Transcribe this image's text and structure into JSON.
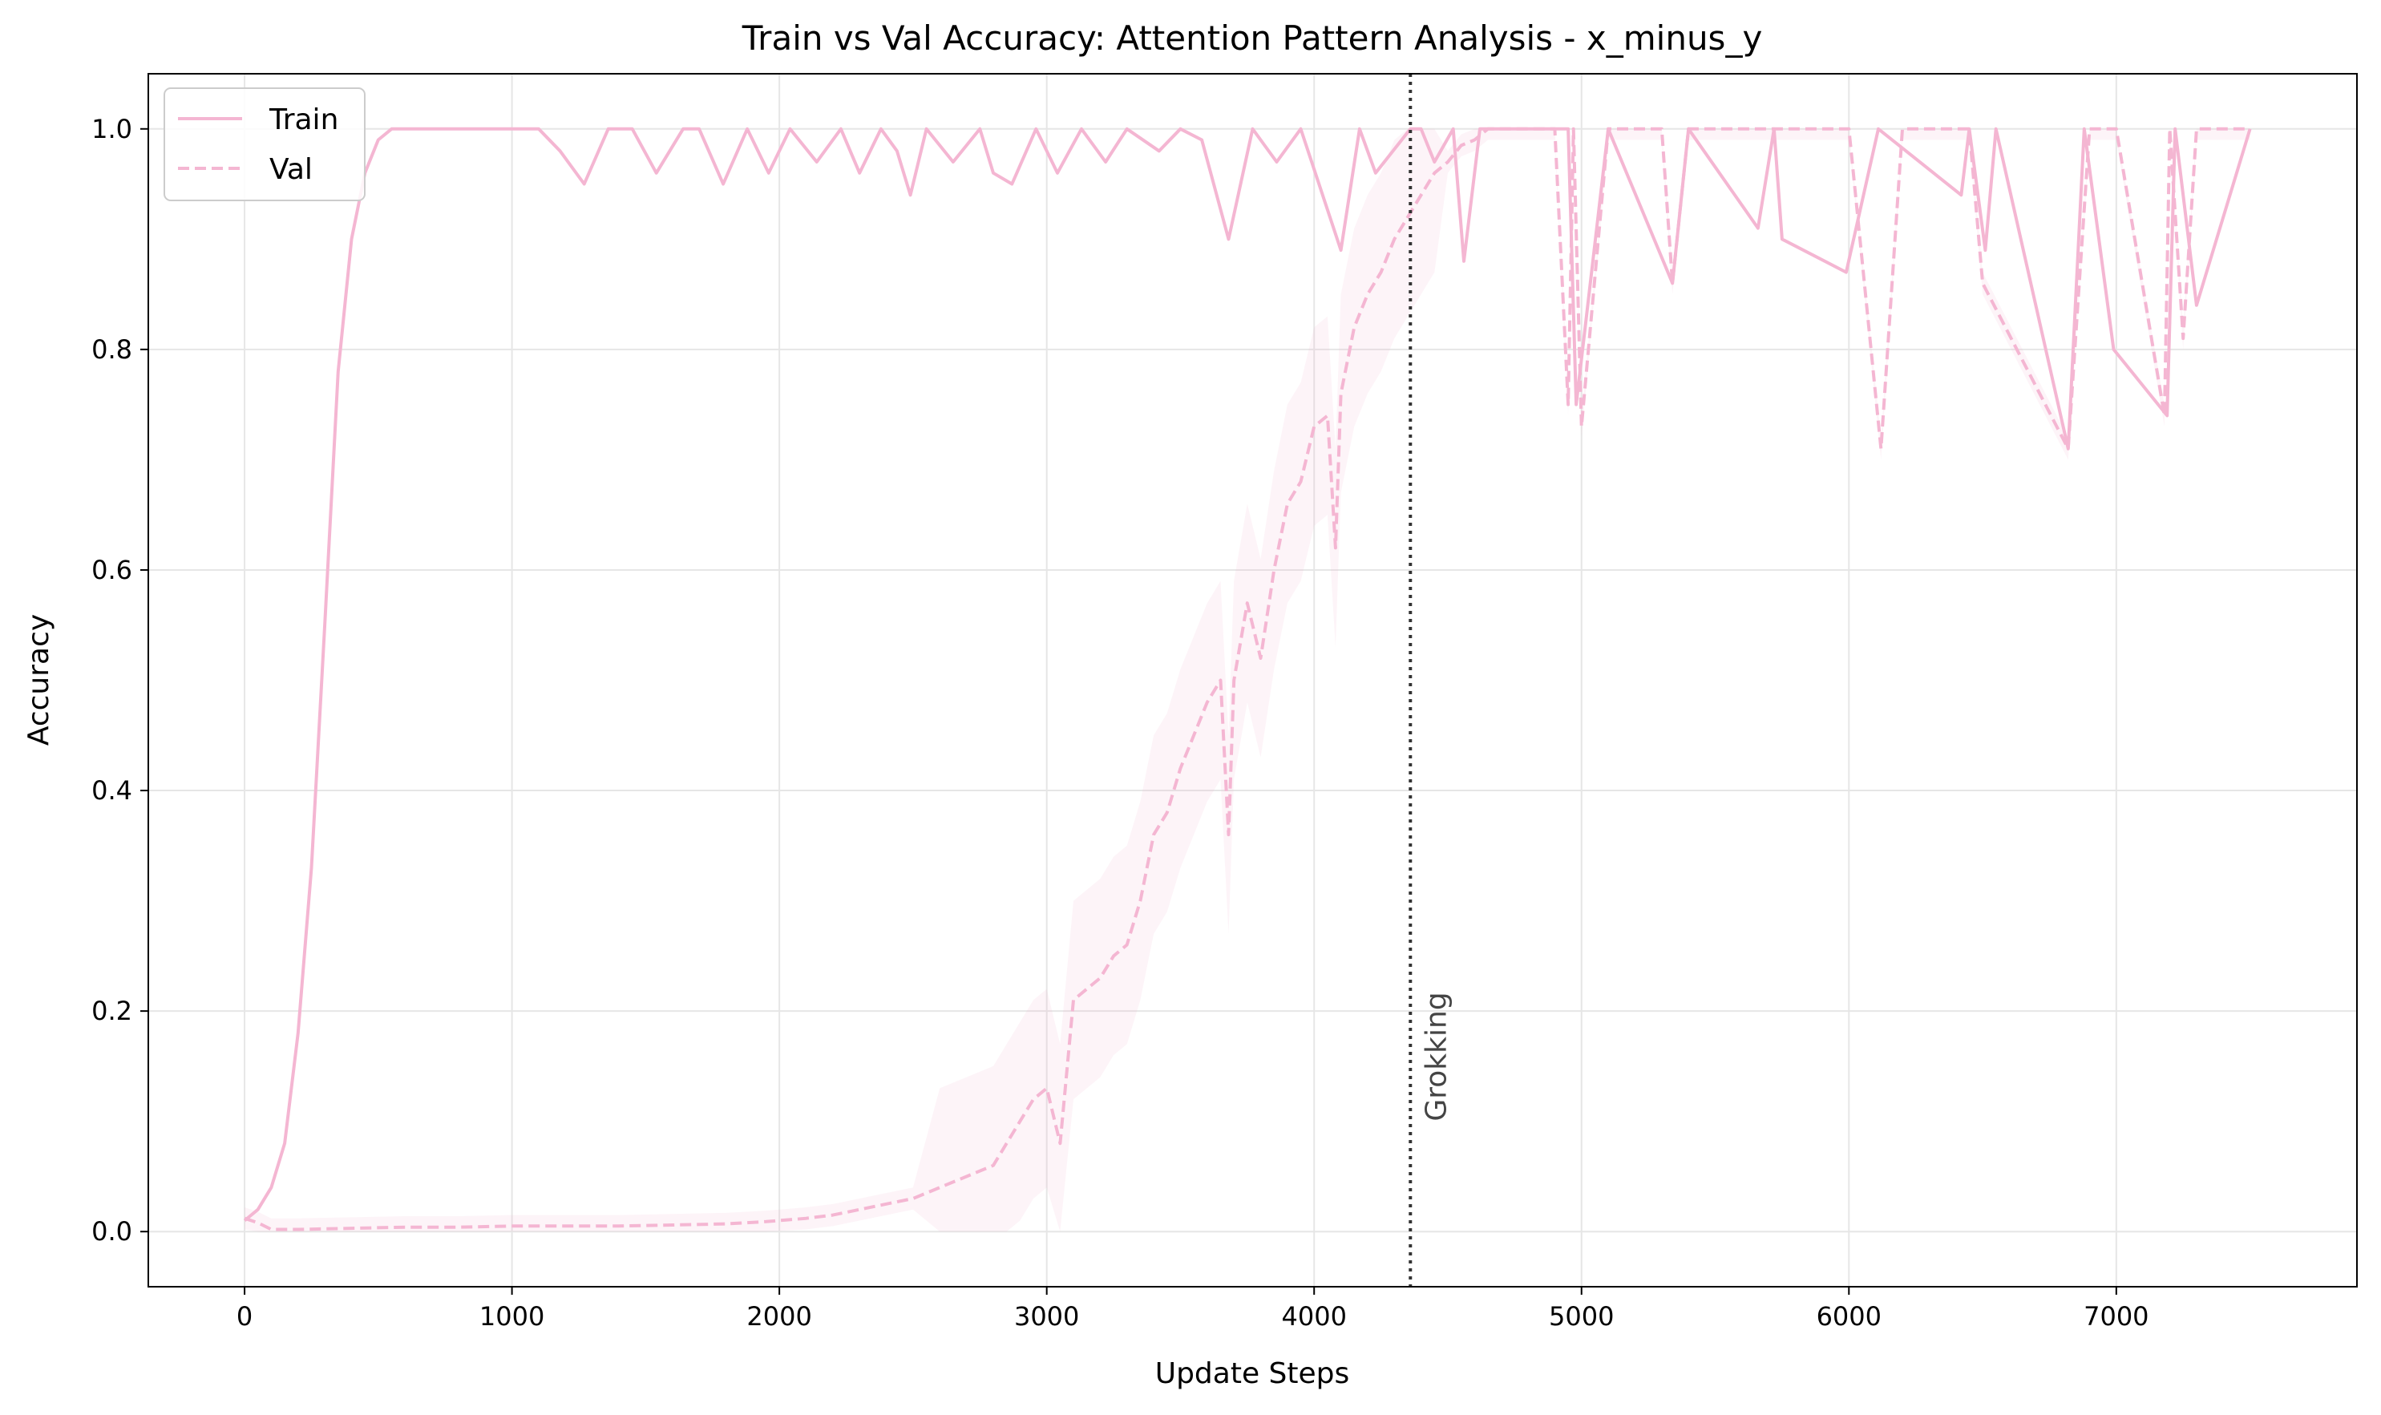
{
  "chart_data": {
    "type": "line",
    "title": "Train vs Val Accuracy: Attention Pattern Analysis - x_minus_y",
    "xlabel": "Update Steps",
    "ylabel": "Accuracy",
    "xlim": [
      -360,
      7900
    ],
    "ylim": [
      -0.05,
      1.05
    ],
    "xticks": [
      0,
      1000,
      2000,
      3000,
      4000,
      5000,
      6000,
      7000
    ],
    "yticks": [
      0.0,
      0.2,
      0.4,
      0.6,
      0.8,
      1.0
    ],
    "xtick_labels": [
      "0",
      "1000",
      "2000",
      "3000",
      "4000",
      "5000",
      "6000",
      "7000"
    ],
    "ytick_labels": [
      "0.0",
      "0.2",
      "0.4",
      "0.6",
      "0.8",
      "1.0"
    ],
    "grid": true,
    "legend_location": "top-left",
    "color": "#f4b6d2",
    "series": [
      {
        "name": "Train",
        "style": "solid",
        "x": [
          0,
          50,
          100,
          150,
          200,
          250,
          300,
          350,
          400,
          450,
          500,
          550,
          600,
          700,
          800,
          900,
          1000,
          1100,
          1180,
          1270,
          1360,
          1450,
          1540,
          1640,
          1700,
          1790,
          1880,
          1960,
          2040,
          2140,
          2230,
          2300,
          2380,
          2440,
          2490,
          2550,
          2650,
          2750,
          2800,
          2870,
          2960,
          3040,
          3130,
          3220,
          3300,
          3420,
          3500,
          3580,
          3680,
          3770,
          3860,
          3950,
          4100,
          4170,
          4230,
          4360,
          4400,
          4450,
          4520,
          4560,
          4620,
          4700,
          4800,
          4950,
          4980,
          5100,
          5340,
          5400,
          5660,
          5720,
          5750,
          5990,
          6110,
          6420,
          6450,
          6510,
          6550,
          6820,
          6880,
          6990,
          7190,
          7220,
          7300,
          7500
        ],
        "y": [
          0.01,
          0.02,
          0.04,
          0.08,
          0.18,
          0.33,
          0.55,
          0.78,
          0.9,
          0.96,
          0.99,
          1.0,
          1.0,
          1.0,
          1.0,
          1.0,
          1.0,
          1.0,
          0.98,
          0.95,
          1.0,
          1.0,
          0.96,
          1.0,
          1.0,
          0.95,
          1.0,
          0.96,
          1.0,
          0.97,
          1.0,
          0.96,
          1.0,
          0.98,
          0.94,
          1.0,
          0.97,
          1.0,
          0.96,
          0.95,
          1.0,
          0.96,
          1.0,
          0.97,
          1.0,
          0.98,
          1.0,
          0.99,
          0.9,
          1.0,
          0.97,
          1.0,
          0.89,
          1.0,
          0.96,
          1.0,
          1.0,
          0.97,
          1.0,
          0.88,
          1.0,
          1.0,
          1.0,
          1.0,
          0.75,
          1.0,
          0.86,
          1.0,
          0.91,
          1.0,
          0.9,
          0.87,
          1.0,
          0.94,
          1.0,
          0.89,
          1.0,
          0.71,
          1.0,
          0.8,
          0.74,
          1.0,
          0.84,
          1.0
        ]
      },
      {
        "name": "Val",
        "style": "dashed",
        "x": [
          0,
          50,
          100,
          200,
          400,
          600,
          800,
          1000,
          1200,
          1400,
          1600,
          1800,
          1950,
          2100,
          2200,
          2300,
          2400,
          2500,
          2600,
          2700,
          2800,
          2850,
          2900,
          2950,
          3000,
          3050,
          3100,
          3150,
          3200,
          3250,
          3300,
          3350,
          3400,
          3450,
          3500,
          3550,
          3600,
          3650,
          3680,
          3700,
          3750,
          3800,
          3850,
          3900,
          3950,
          4000,
          4050,
          4080,
          4100,
          4150,
          4200,
          4250,
          4300,
          4350,
          4400,
          4450,
          4500,
          4550,
          4600,
          4650,
          4700,
          4800,
          4900,
          4950,
          4970,
          5000,
          5100,
          5300,
          5340,
          5400,
          5700,
          6000,
          6120,
          6200,
          6450,
          6500,
          6820,
          6900,
          7000,
          7180,
          7200,
          7250,
          7300,
          7500
        ],
        "y": [
          0.012,
          0.008,
          0.002,
          0.002,
          0.003,
          0.004,
          0.004,
          0.005,
          0.005,
          0.005,
          0.006,
          0.007,
          0.009,
          0.012,
          0.015,
          0.02,
          0.025,
          0.03,
          0.04,
          0.05,
          0.06,
          0.08,
          0.1,
          0.12,
          0.13,
          0.08,
          0.21,
          0.22,
          0.23,
          0.25,
          0.26,
          0.3,
          0.36,
          0.38,
          0.42,
          0.45,
          0.48,
          0.5,
          0.36,
          0.5,
          0.57,
          0.52,
          0.6,
          0.66,
          0.68,
          0.73,
          0.74,
          0.62,
          0.76,
          0.82,
          0.85,
          0.87,
          0.9,
          0.92,
          0.94,
          0.96,
          0.97,
          0.985,
          0.99,
          1.0,
          1.0,
          1.0,
          1.0,
          0.75,
          1.0,
          0.73,
          1.0,
          1.0,
          0.86,
          1.0,
          1.0,
          1.0,
          0.71,
          1.0,
          1.0,
          0.86,
          0.71,
          1.0,
          1.0,
          0.74,
          1.0,
          0.81,
          1.0,
          1.0
        ]
      }
    ],
    "annotations": [
      {
        "type": "vline",
        "x": 4360,
        "style": "dotted",
        "color": "#333333",
        "label": "Grokking"
      }
    ]
  }
}
